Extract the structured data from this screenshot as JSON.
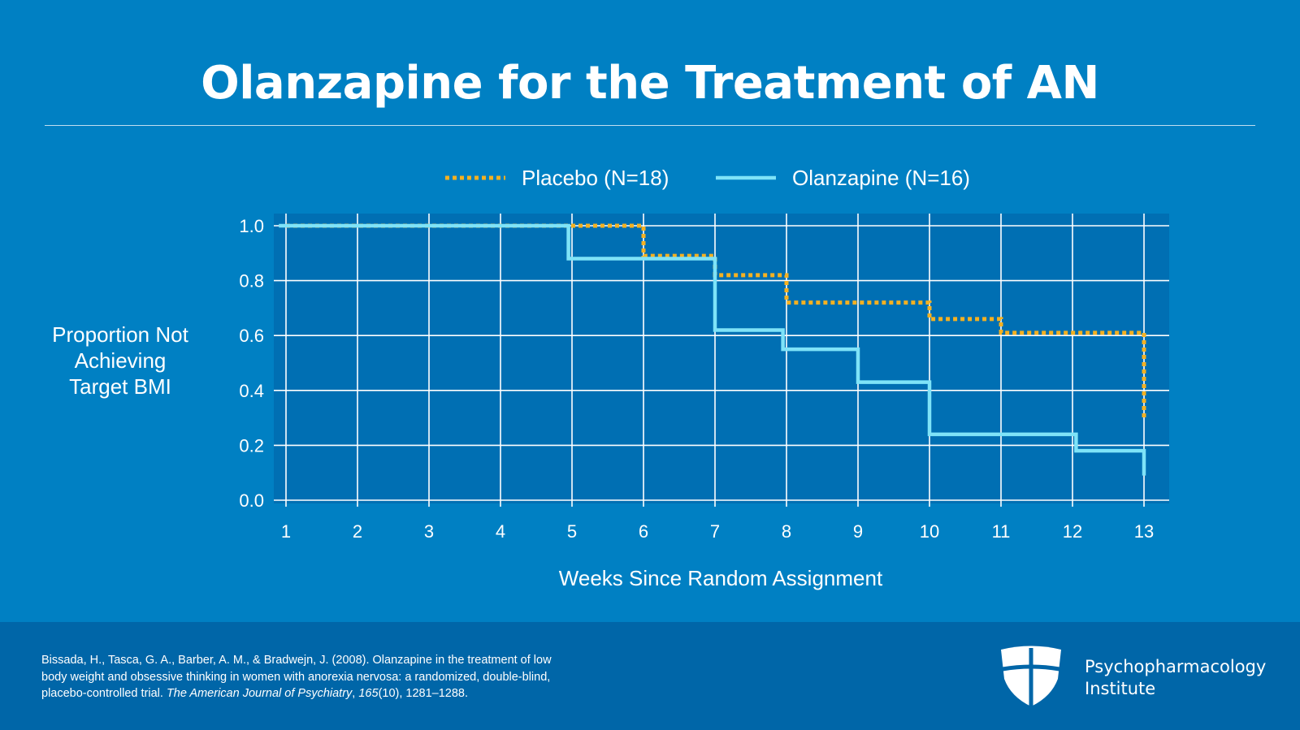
{
  "slide": {
    "title": "Olanzapine for the Treatment of AN"
  },
  "colors": {
    "background": "#0080c3",
    "plot_area": "#006fb3",
    "footer": "#0066a8",
    "placebo": "#f5b121",
    "olanzapine": "#7ee3f8"
  },
  "chart_data": {
    "type": "line",
    "subtype": "step",
    "title": "",
    "xlabel": "Weeks Since Random Assignment",
    "ylabel": [
      "Proportion Not",
      "Achieving",
      "Target BMI"
    ],
    "x_ticks": [
      1,
      2,
      3,
      4,
      5,
      6,
      7,
      8,
      9,
      10,
      11,
      12,
      13
    ],
    "y_ticks": [
      "0.0",
      "0.2",
      "0.4",
      "0.6",
      "0.8",
      "1.0"
    ],
    "xlim": [
      0.85,
      13.35
    ],
    "ylim": [
      -0.01,
      1.04
    ],
    "grid": true,
    "legend_position": "top-center",
    "series": [
      {
        "name": "Placebo (N=18)",
        "style": "dotted",
        "color_key": "placebo",
        "start": [
          1,
          1.0
        ],
        "steps": [
          [
            5,
            1.0
          ],
          [
            6,
            0.89
          ],
          [
            7,
            0.82
          ],
          [
            8,
            0.72
          ],
          [
            10,
            0.66
          ],
          [
            11,
            0.61
          ],
          [
            13,
            0.3
          ]
        ],
        "end_x": 13
      },
      {
        "name": "Olanzapine (N=16)",
        "style": "solid",
        "color_key": "olanzapine",
        "start": [
          0.9,
          1.0
        ],
        "steps": [
          [
            4.95,
            0.88
          ],
          [
            7,
            0.62
          ],
          [
            7.95,
            0.55
          ],
          [
            9,
            0.43
          ],
          [
            10,
            0.24
          ],
          [
            12.05,
            0.18
          ],
          [
            13,
            0.09
          ]
        ],
        "end_x": 13
      }
    ]
  },
  "citation": {
    "before_journal": "Bissada, H., Tasca, G. A., Barber, A. M., & Bradwejn, J. (2008). Olanzapine in the treatment of low body weight and obsessive thinking in women with anorexia nervosa: a randomized, double-blind, placebo-controlled trial. ",
    "journal": "The American Journal of Psychiatry",
    "sep": ", ",
    "volume": "165",
    "tail": "(10), 1281–1288."
  },
  "brand": {
    "line1": "Psychopharmacology",
    "line2": "Institute",
    "logo_icon": "shield-icon"
  }
}
